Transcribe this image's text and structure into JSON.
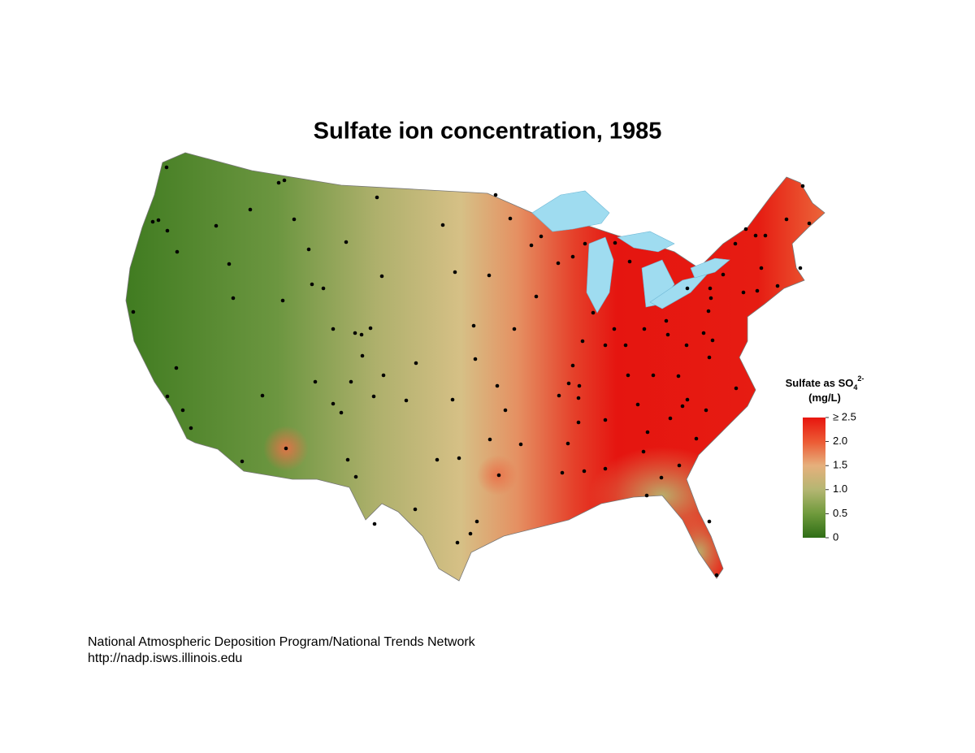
{
  "title": "Sulfate ion concentration, 1985",
  "legend": {
    "title": "Sulfate as SO",
    "subscript": "4",
    "superscript": "2-",
    "unit": "(mg/L)",
    "lim": [
      0,
      2.5
    ],
    "ticks": [
      {
        "value": 2.5,
        "label": "≥ 2.5"
      },
      {
        "value": 2,
        "label": "2.0"
      },
      {
        "value": 1.5,
        "label": "1.5"
      },
      {
        "value": 1,
        "label": "1.0"
      },
      {
        "value": 0.5,
        "label": "0.5"
      },
      0
    ],
    "colors": [
      "#e8150e",
      "#ec5a34",
      "#e6b07c",
      "#b4b672",
      "#6f9a3c",
      "#2f6e16"
    ]
  },
  "footer": {
    "lines": [
      "National Atmospheric Deposition Program/National Trends Network",
      "http://nadp.isws.illinois.edu"
    ]
  }
}
